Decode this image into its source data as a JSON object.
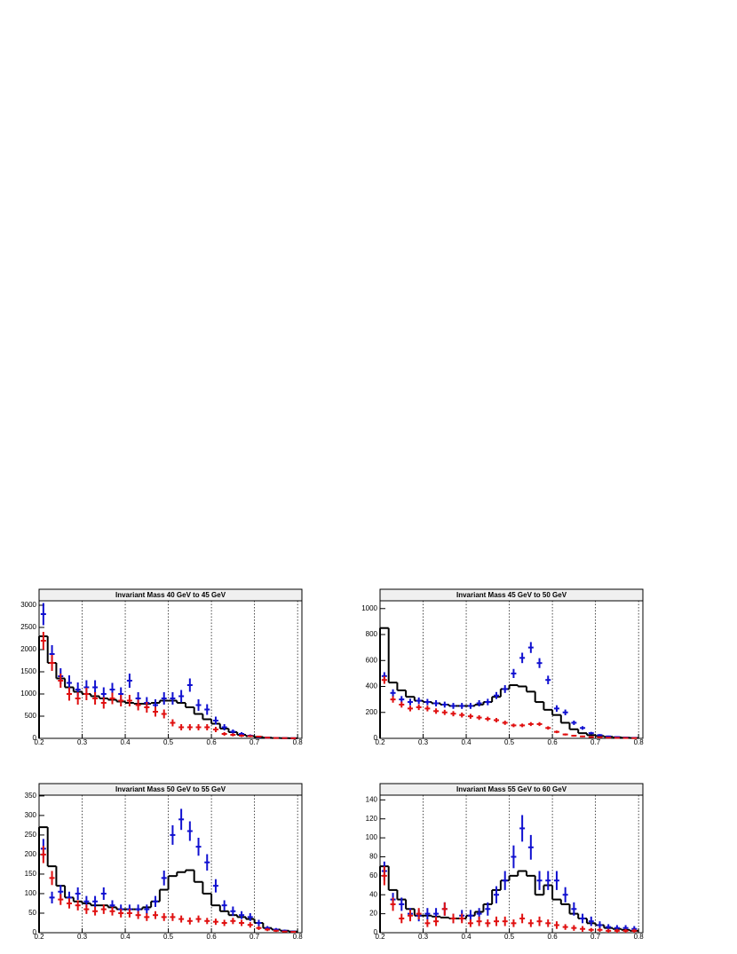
{
  "chart_data": [
    {
      "type": "histogram",
      "title": "Invariant Mass 40 GeV to 45 GeV",
      "bins": [
        0.2,
        0.22,
        0.24,
        0.26,
        0.28,
        0.3,
        0.32,
        0.34,
        0.36,
        0.38,
        0.4,
        0.42,
        0.44,
        0.46,
        0.48,
        0.5,
        0.52,
        0.54,
        0.56,
        0.58,
        0.6,
        0.62,
        0.64,
        0.66,
        0.68,
        0.7,
        0.72,
        0.74,
        0.76,
        0.78,
        0.8
      ],
      "xlim": [
        0.2,
        0.81
      ],
      "ylim": [
        0,
        3100
      ],
      "xticks": [
        0.2,
        0.3,
        0.4,
        0.5,
        0.6,
        0.7,
        0.8
      ],
      "yticks": [
        0,
        500,
        1000,
        1500,
        2000,
        2500,
        3000
      ],
      "grid": "x",
      "series": [
        {
          "color": "#000000",
          "style": "step",
          "values": [
            2300,
            1700,
            1350,
            1150,
            1050,
            1000,
            950,
            900,
            870,
            830,
            800,
            780,
            780,
            800,
            850,
            850,
            800,
            700,
            550,
            430,
            330,
            220,
            140,
            80,
            50,
            30,
            15,
            8,
            5,
            3
          ]
        },
        {
          "color": "#1010d0",
          "style": "points",
          "values": [
            2800,
            1900,
            1400,
            1250,
            1100,
            1150,
            1150,
            1000,
            1100,
            1000,
            1300,
            900,
            800,
            750,
            900,
            900,
            950,
            1200,
            750,
            650,
            400,
            250,
            150,
            100,
            60,
            30,
            15,
            10,
            5,
            3
          ],
          "errors": [
            250,
            200,
            180,
            170,
            160,
            160,
            160,
            150,
            150,
            150,
            160,
            140,
            130,
            130,
            140,
            140,
            140,
            150,
            130,
            120,
            90,
            70,
            50,
            40,
            30,
            20,
            12,
            10,
            7,
            5
          ]
        },
        {
          "color": "#e01010",
          "style": "points",
          "values": [
            2200,
            1700,
            1300,
            1000,
            900,
            1000,
            900,
            800,
            900,
            850,
            850,
            750,
            700,
            600,
            550,
            350,
            250,
            250,
            250,
            250,
            200,
            100,
            80,
            60,
            50,
            40,
            15,
            8,
            5,
            3
          ],
          "errors": [
            200,
            180,
            160,
            150,
            140,
            140,
            140,
            130,
            130,
            130,
            130,
            120,
            120,
            110,
            100,
            80,
            70,
            70,
            70,
            70,
            60,
            40,
            35,
            30,
            25,
            20,
            10,
            8,
            6,
            4
          ]
        }
      ]
    },
    {
      "type": "histogram",
      "title": "Invariant Mass 45 GeV to 50 GeV",
      "bins": [
        0.2,
        0.22,
        0.24,
        0.26,
        0.28,
        0.3,
        0.32,
        0.34,
        0.36,
        0.38,
        0.4,
        0.42,
        0.44,
        0.46,
        0.48,
        0.5,
        0.52,
        0.54,
        0.56,
        0.58,
        0.6,
        0.62,
        0.64,
        0.66,
        0.68,
        0.7,
        0.72,
        0.74,
        0.76,
        0.78,
        0.8
      ],
      "xlim": [
        0.2,
        0.81
      ],
      "ylim": [
        0,
        1060
      ],
      "xticks": [
        0.2,
        0.3,
        0.4,
        0.5,
        0.6,
        0.7,
        0.8
      ],
      "yticks": [
        0,
        200,
        400,
        600,
        800,
        1000
      ],
      "grid": "x",
      "series": [
        {
          "color": "#000000",
          "style": "step",
          "values": [
            850,
            430,
            370,
            320,
            290,
            280,
            270,
            260,
            250,
            250,
            250,
            260,
            280,
            320,
            380,
            410,
            400,
            360,
            280,
            220,
            180,
            120,
            70,
            40,
            25,
            18,
            12,
            8,
            5,
            3
          ]
        },
        {
          "color": "#1010d0",
          "style": "points",
          "values": [
            480,
            350,
            300,
            280,
            290,
            280,
            270,
            260,
            250,
            250,
            250,
            270,
            280,
            330,
            380,
            500,
            620,
            700,
            580,
            450,
            230,
            200,
            120,
            80,
            40,
            25,
            15,
            10,
            6,
            4
          ],
          "errors": [
            30,
            28,
            26,
            25,
            25,
            24,
            24,
            23,
            23,
            23,
            23,
            24,
            25,
            27,
            30,
            35,
            40,
            42,
            38,
            33,
            25,
            22,
            17,
            14,
            10,
            8,
            6,
            5,
            4,
            3
          ]
        },
        {
          "color": "#e01010",
          "style": "points",
          "values": [
            450,
            300,
            260,
            230,
            240,
            230,
            210,
            200,
            190,
            180,
            170,
            160,
            150,
            140,
            120,
            100,
            100,
            110,
            110,
            80,
            50,
            30,
            20,
            15,
            10,
            8,
            5,
            4,
            3,
            2
          ],
          "errors": [
            30,
            25,
            23,
            22,
            22,
            22,
            21,
            20,
            20,
            19,
            19,
            18,
            17,
            17,
            16,
            14,
            14,
            15,
            15,
            13,
            10,
            8,
            7,
            6,
            5,
            4,
            3,
            3,
            2,
            2
          ]
        }
      ]
    },
    {
      "type": "histogram",
      "title": "Invariant Mass 50 GeV to 55 GeV",
      "bins": [
        0.2,
        0.22,
        0.24,
        0.26,
        0.28,
        0.3,
        0.32,
        0.34,
        0.36,
        0.38,
        0.4,
        0.42,
        0.44,
        0.46,
        0.48,
        0.5,
        0.52,
        0.54,
        0.56,
        0.58,
        0.6,
        0.62,
        0.64,
        0.66,
        0.68,
        0.7,
        0.72,
        0.74,
        0.76,
        0.78,
        0.8
      ],
      "xlim": [
        0.2,
        0.81
      ],
      "ylim": [
        0,
        352
      ],
      "xticks": [
        0.2,
        0.3,
        0.4,
        0.5,
        0.6,
        0.7,
        0.8
      ],
      "yticks": [
        0,
        50,
        100,
        150,
        200,
        250,
        300,
        350
      ],
      "grid": "x",
      "series": [
        {
          "color": "#000000",
          "style": "step",
          "values": [
            270,
            170,
            120,
            90,
            80,
            75,
            70,
            70,
            65,
            60,
            60,
            60,
            65,
            80,
            110,
            145,
            155,
            160,
            130,
            100,
            70,
            55,
            45,
            40,
            35,
            25,
            12,
            8,
            5,
            3
          ]
        },
        {
          "color": "#1010d0",
          "style": "points",
          "values": [
            215,
            90,
            105,
            90,
            100,
            80,
            80,
            100,
            70,
            60,
            60,
            60,
            60,
            80,
            140,
            250,
            290,
            260,
            220,
            180,
            120,
            70,
            55,
            45,
            40,
            25,
            12,
            8,
            5,
            3
          ],
          "errors": [
            25,
            15,
            17,
            15,
            16,
            14,
            14,
            16,
            13,
            12,
            12,
            12,
            12,
            14,
            19,
            25,
            27,
            25,
            23,
            21,
            17,
            13,
            12,
            10,
            10,
            8,
            5,
            4,
            3,
            2
          ]
        },
        {
          "color": "#e01010",
          "style": "points",
          "values": [
            200,
            140,
            85,
            75,
            70,
            60,
            55,
            60,
            55,
            50,
            50,
            45,
            40,
            45,
            40,
            40,
            35,
            30,
            35,
            30,
            28,
            25,
            30,
            25,
            20,
            12,
            8,
            5,
            3,
            2
          ],
          "errors": [
            22,
            18,
            14,
            13,
            13,
            12,
            11,
            12,
            11,
            11,
            11,
            10,
            10,
            10,
            10,
            10,
            9,
            9,
            9,
            8,
            8,
            8,
            8,
            8,
            7,
            5,
            4,
            3,
            2,
            2
          ]
        }
      ]
    },
    {
      "type": "histogram",
      "title": "Invariant Mass 55 GeV to 60 GeV",
      "bins": [
        0.2,
        0.22,
        0.24,
        0.26,
        0.28,
        0.3,
        0.32,
        0.34,
        0.36,
        0.38,
        0.4,
        0.42,
        0.44,
        0.46,
        0.48,
        0.5,
        0.52,
        0.54,
        0.56,
        0.58,
        0.6,
        0.62,
        0.64,
        0.66,
        0.68,
        0.7,
        0.72,
        0.74,
        0.76,
        0.78,
        0.8
      ],
      "xlim": [
        0.2,
        0.81
      ],
      "ylim": [
        0,
        145
      ],
      "xticks": [
        0.2,
        0.3,
        0.4,
        0.5,
        0.6,
        0.7,
        0.8
      ],
      "yticks": [
        0,
        20,
        40,
        60,
        80,
        100,
        120,
        140
      ],
      "grid": "x",
      "series": [
        {
          "color": "#000000",
          "style": "step",
          "values": [
            70,
            45,
            35,
            25,
            18,
            18,
            17,
            16,
            15,
            15,
            18,
            22,
            30,
            45,
            55,
            60,
            65,
            60,
            40,
            50,
            35,
            30,
            20,
            15,
            10,
            8,
            5,
            4,
            3,
            2
          ]
        },
        {
          "color": "#1010d0",
          "style": "points",
          "values": [
            65,
            35,
            30,
            20,
            18,
            20,
            20,
            25,
            15,
            18,
            18,
            20,
            25,
            40,
            55,
            80,
            110,
            90,
            55,
            55,
            55,
            40,
            25,
            15,
            12,
            8,
            6,
            5,
            5,
            4
          ],
          "errors": [
            10,
            7,
            7,
            6,
            6,
            6,
            6,
            7,
            5,
            6,
            6,
            6,
            7,
            9,
            10,
            12,
            14,
            13,
            10,
            10,
            10,
            8,
            7,
            5,
            5,
            4,
            3,
            3,
            3,
            3
          ]
        },
        {
          "color": "#e01010",
          "style": "points",
          "values": [
            60,
            30,
            15,
            18,
            20,
            10,
            12,
            25,
            15,
            15,
            10,
            12,
            10,
            12,
            12,
            10,
            15,
            10,
            12,
            10,
            8,
            6,
            5,
            4,
            3,
            3,
            2,
            2,
            2,
            2
          ],
          "errors": [
            10,
            7,
            5,
            6,
            6,
            4,
            5,
            7,
            5,
            5,
            4,
            5,
            4,
            5,
            5,
            4,
            5,
            4,
            5,
            4,
            4,
            3,
            3,
            3,
            2,
            2,
            2,
            2,
            2,
            2
          ]
        }
      ]
    }
  ]
}
